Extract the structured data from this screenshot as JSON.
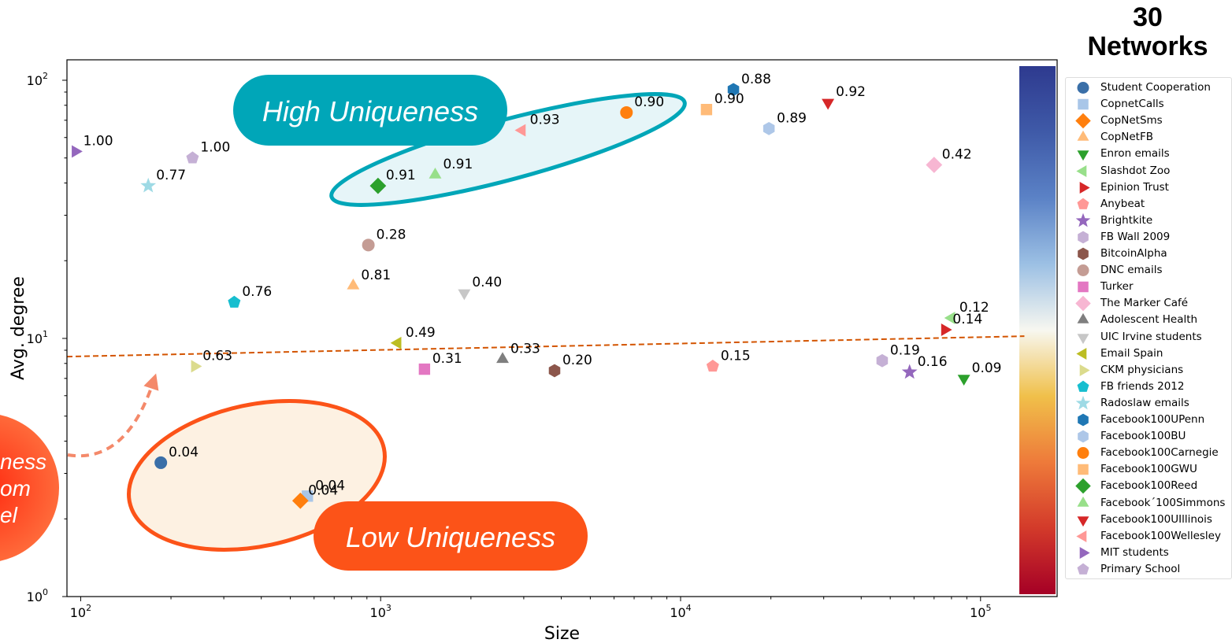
{
  "heading": {
    "line1": "30",
    "line2": "Networks"
  },
  "chart_data": {
    "type": "scatter",
    "title": "",
    "xlabel": "Size",
    "ylabel": "Avg. degree",
    "x_scale": "log",
    "y_scale": "log",
    "xlim": [
      90,
      180000
    ],
    "ylim": [
      1,
      120
    ],
    "x_ticks": [
      {
        "value": 100,
        "base": "10",
        "exp": "2"
      },
      {
        "value": 1000,
        "base": "10",
        "exp": "3"
      },
      {
        "value": 10000,
        "base": "10",
        "exp": "4"
      },
      {
        "value": 100000,
        "base": "10",
        "exp": "5"
      }
    ],
    "y_ticks": [
      {
        "value": 1,
        "base": "10",
        "exp": "0"
      },
      {
        "value": 10,
        "base": "10",
        "exp": "1"
      },
      {
        "value": 100,
        "base": "10",
        "exp": "2"
      }
    ],
    "grid": false,
    "legend_position": "right",
    "trend_line": {
      "x": [
        90,
        140000
      ],
      "y": [
        8.5,
        10.2
      ],
      "color": "#d35400",
      "style": "dashed"
    },
    "colorbar": {
      "colors_top_to_bottom": [
        "#2e3a8f",
        "#3f5aa8",
        "#5b82c6",
        "#9cc0e4",
        "#f7f7f0",
        "#f0c04a",
        "#ee7a3a",
        "#d33a2a",
        "#a50026"
      ]
    },
    "annotations": [
      {
        "text": "High Uniqueness",
        "color": "#00a6b8"
      },
      {
        "text": "Low Uniqueness",
        "color": "#fc5318"
      },
      {
        "text": "ness",
        "color": "#ff3b1f"
      },
      {
        "text": "om",
        "color": "#ff3b1f"
      },
      {
        "text": "el",
        "color": "#ff3b1f"
      }
    ],
    "series": [
      {
        "name": "Student Cooperation",
        "marker": "circle",
        "color": "#3a6fa8",
        "x": 185,
        "y": 3.3,
        "label": "0.04"
      },
      {
        "name": "CopnetCalls",
        "marker": "square",
        "color": "#a9c6e8",
        "x": 570,
        "y": 2.45,
        "label": "0.04"
      },
      {
        "name": "CopNetSms",
        "marker": "diamond",
        "color": "#ff7f0e",
        "x": 540,
        "y": 2.35,
        "label": "0.04"
      },
      {
        "name": "CopNetFB",
        "marker": "triangle-up",
        "color": "#ffbb78",
        "x": 810,
        "y": 16,
        "label": "0.81"
      },
      {
        "name": "Enron emails",
        "marker": "triangle-down",
        "color": "#2ca02c",
        "x": 88000,
        "y": 7.0,
        "label": "0.09"
      },
      {
        "name": "Slashdot Zoo",
        "marker": "triangle-left",
        "color": "#98df8a",
        "x": 80000,
        "y": 12,
        "label": "0.12"
      },
      {
        "name": "Epinion Trust",
        "marker": "triangle-right",
        "color": "#d62728",
        "x": 76000,
        "y": 10.8,
        "label": "0.14"
      },
      {
        "name": "Anybeat",
        "marker": "pentagon",
        "color": "#ff9896",
        "x": 12800,
        "y": 7.8,
        "label": "0.15"
      },
      {
        "name": "Brightkite",
        "marker": "star",
        "color": "#9467bd",
        "x": 58000,
        "y": 7.4,
        "label": "0.16"
      },
      {
        "name": "FB Wall 2009",
        "marker": "hexagon",
        "color": "#c5b0d5",
        "x": 47000,
        "y": 8.2,
        "label": "0.19"
      },
      {
        "name": "BitcoinAlpha",
        "marker": "hexagon",
        "color": "#8c564b",
        "x": 3800,
        "y": 7.5,
        "label": "0.20"
      },
      {
        "name": "DNC emails",
        "marker": "circle",
        "color": "#c49c94",
        "x": 910,
        "y": 23,
        "label": "0.28"
      },
      {
        "name": "Turker",
        "marker": "square",
        "color": "#e377c2",
        "x": 1400,
        "y": 7.6,
        "label": "0.31"
      },
      {
        "name": "The Marker Café",
        "marker": "diamond",
        "color": "#f7b6d2",
        "x": 70000,
        "y": 47,
        "label": "0.42"
      },
      {
        "name": "Adolescent Health",
        "marker": "triangle-up",
        "color": "#7f7f7f",
        "x": 2550,
        "y": 8.3,
        "label": "0.33"
      },
      {
        "name": "UIC Irvine students",
        "marker": "triangle-down",
        "color": "#c7c7c7",
        "x": 1900,
        "y": 15,
        "label": "0.40"
      },
      {
        "name": "Email Spain",
        "marker": "triangle-left",
        "color": "#bcbd22",
        "x": 1140,
        "y": 9.6,
        "label": "0.49"
      },
      {
        "name": "CKM physicians",
        "marker": "triangle-right",
        "color": "#dbdb8d",
        "x": 240,
        "y": 7.8,
        "label": "0.63"
      },
      {
        "name": "FB friends 2012",
        "marker": "pentagon",
        "color": "#17becf",
        "x": 325,
        "y": 13.8,
        "label": "0.76"
      },
      {
        "name": "Radoslaw emails",
        "marker": "star",
        "color": "#9edae5",
        "x": 168,
        "y": 39,
        "label": "0.77"
      },
      {
        "name": "Facebook100UPenn",
        "marker": "hexagon",
        "color": "#1f77b4",
        "x": 15000,
        "y": 92,
        "label": "0.88"
      },
      {
        "name": "Facebook100BU",
        "marker": "hexagon",
        "color": "#aec7e8",
        "x": 19700,
        "y": 65,
        "label": "0.89"
      },
      {
        "name": "Facebook100Carnegie",
        "marker": "circle",
        "color": "#ff7f0e",
        "x": 6600,
        "y": 75,
        "label": "0.90"
      },
      {
        "name": "Facebook100GWU",
        "marker": "square",
        "color": "#ffbb78",
        "x": 12200,
        "y": 77,
        "label": "0.90"
      },
      {
        "name": "Facebook100Reed",
        "marker": "diamond",
        "color": "#2ca02c",
        "x": 980,
        "y": 39,
        "label": "0.91"
      },
      {
        "name": "Facebook´100Simmons",
        "marker": "triangle-up",
        "color": "#98df8a",
        "x": 1520,
        "y": 43,
        "label": "0.91"
      },
      {
        "name": "Facebook100UIllinois",
        "marker": "triangle-down",
        "color": "#d62728",
        "x": 31000,
        "y": 82,
        "label": "0.92"
      },
      {
        "name": "Facebook100Wellesley",
        "marker": "triangle-left",
        "color": "#ff9896",
        "x": 2960,
        "y": 64,
        "label": "0.93"
      },
      {
        "name": "MIT students",
        "marker": "triangle-right",
        "color": "#9467bd",
        "x": 96,
        "y": 53,
        "label": "1.00"
      },
      {
        "name": "Primary School",
        "marker": "pentagon",
        "color": "#c5b0d5",
        "x": 236,
        "y": 50,
        "label": "1.00"
      }
    ]
  }
}
